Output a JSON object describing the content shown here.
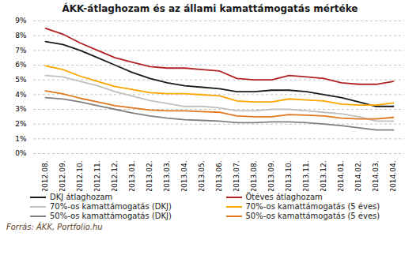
{
  "chart_data": {
    "type": "line",
    "title": "ÁKK-átlaghozam és az állami kamattámogatás mértéke",
    "source": "Forrás: ÁKK, Portfolio.hu",
    "categories": [
      "2012.08.",
      "2012.09.",
      "2012.10.",
      "2012.11.",
      "2012.12.",
      "2013.01.",
      "2013.02.",
      "2013.03.",
      "2013.04.",
      "2013.05.",
      "2013.06.",
      "2013.07.",
      "2013.08.",
      "2013.09.",
      "2013.10.",
      "2013.11.",
      "2013.12.",
      "2014.01.",
      "2014.02.",
      "2014.03.",
      "2014.04."
    ],
    "series": [
      {
        "name": "DKJ átlaghozam",
        "color": "#1a1a1a",
        "values": [
          7.6,
          7.4,
          7.0,
          6.5,
          6.0,
          5.5,
          5.1,
          4.8,
          4.6,
          4.5,
          4.4,
          4.2,
          4.2,
          4.3,
          4.3,
          4.2,
          4.0,
          3.8,
          3.5,
          3.2,
          3.2
        ]
      },
      {
        "name": "70%-os kamattámogatás (DKJ)",
        "color": "#c0c0c0",
        "values": [
          5.3,
          5.2,
          4.9,
          4.6,
          4.2,
          3.9,
          3.6,
          3.4,
          3.2,
          3.2,
          3.1,
          2.9,
          2.9,
          3.0,
          3.0,
          2.9,
          2.8,
          2.7,
          2.5,
          2.2,
          2.2
        ]
      },
      {
        "name": "50%-os kamattámogatás (DKJ)",
        "color": "#808080",
        "values": [
          3.8,
          3.7,
          3.5,
          3.25,
          3.0,
          2.75,
          2.55,
          2.4,
          2.3,
          2.25,
          2.2,
          2.1,
          2.1,
          2.15,
          2.15,
          2.1,
          2.0,
          1.9,
          1.75,
          1.6,
          1.6
        ]
      },
      {
        "name": "Ötéves átlaghozam",
        "color": "#b22222",
        "values": [
          8.5,
          8.1,
          7.5,
          7.0,
          6.5,
          6.2,
          5.9,
          5.8,
          5.8,
          5.7,
          5.6,
          5.1,
          5.0,
          5.0,
          5.3,
          5.2,
          5.1,
          4.8,
          4.7,
          4.7,
          4.9
        ]
      },
      {
        "name": "70%-os kamattámogatás (5 éves)",
        "color": "#ffa500",
        "values": [
          5.95,
          5.7,
          5.25,
          4.9,
          4.55,
          4.34,
          4.13,
          4.06,
          4.06,
          3.99,
          3.92,
          3.57,
          3.5,
          3.5,
          3.71,
          3.64,
          3.57,
          3.36,
          3.29,
          3.29,
          3.43
        ]
      },
      {
        "name": "50%-os kamattámogatás (5 éves)",
        "color": "#e07820",
        "values": [
          4.25,
          4.05,
          3.75,
          3.5,
          3.25,
          3.1,
          2.95,
          2.9,
          2.9,
          2.85,
          2.8,
          2.55,
          2.5,
          2.5,
          2.65,
          2.6,
          2.55,
          2.4,
          2.35,
          2.35,
          2.45
        ]
      }
    ],
    "ylim": [
      0,
      9
    ],
    "yticks": [
      {
        "value": 0,
        "label": "0%"
      },
      {
        "value": 1,
        "label": "1%"
      },
      {
        "value": 2,
        "label": "2%"
      },
      {
        "value": 3,
        "label": "3%"
      },
      {
        "value": 4,
        "label": "4%"
      },
      {
        "value": 5,
        "label": "5%"
      },
      {
        "value": 6,
        "label": "6%"
      },
      {
        "value": 7,
        "label": "7%"
      },
      {
        "value": 8,
        "label": "8%"
      },
      {
        "value": 9,
        "label": "9%"
      }
    ],
    "grid": true,
    "legend": "bottom"
  }
}
